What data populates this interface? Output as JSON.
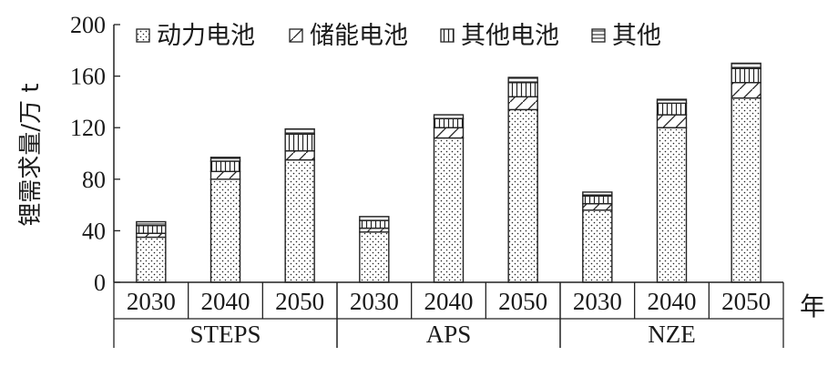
{
  "chart_data": {
    "type": "bar",
    "stacked": true,
    "ylabel": "锂需求量/万 t",
    "x_unit_label": "年",
    "ylim": [
      0,
      200
    ],
    "yticks": [
      0,
      40,
      80,
      120,
      160,
      200
    ],
    "groups": [
      "STEPS",
      "APS",
      "NZE"
    ],
    "categories": [
      "2030",
      "2040",
      "2050"
    ],
    "legend_position": "top",
    "series": [
      {
        "name": "动力电池",
        "pattern": "dots",
        "values": [
          [
            35,
            80,
            95
          ],
          [
            39,
            112,
            134
          ],
          [
            56,
            120,
            143
          ]
        ]
      },
      {
        "name": "储能电池",
        "pattern": "diagonal",
        "values": [
          [
            3,
            6,
            7
          ],
          [
            3,
            8,
            10
          ],
          [
            5,
            10,
            12
          ]
        ]
      },
      {
        "name": "其他电池",
        "pattern": "vertical",
        "values": [
          [
            6,
            8,
            13
          ],
          [
            6,
            7,
            11
          ],
          [
            6,
            9,
            11
          ]
        ]
      },
      {
        "name": "其他",
        "pattern": "horizontal",
        "values": [
          [
            3,
            3,
            4
          ],
          [
            3,
            3,
            4
          ],
          [
            3,
            3,
            4
          ]
        ]
      }
    ]
  }
}
